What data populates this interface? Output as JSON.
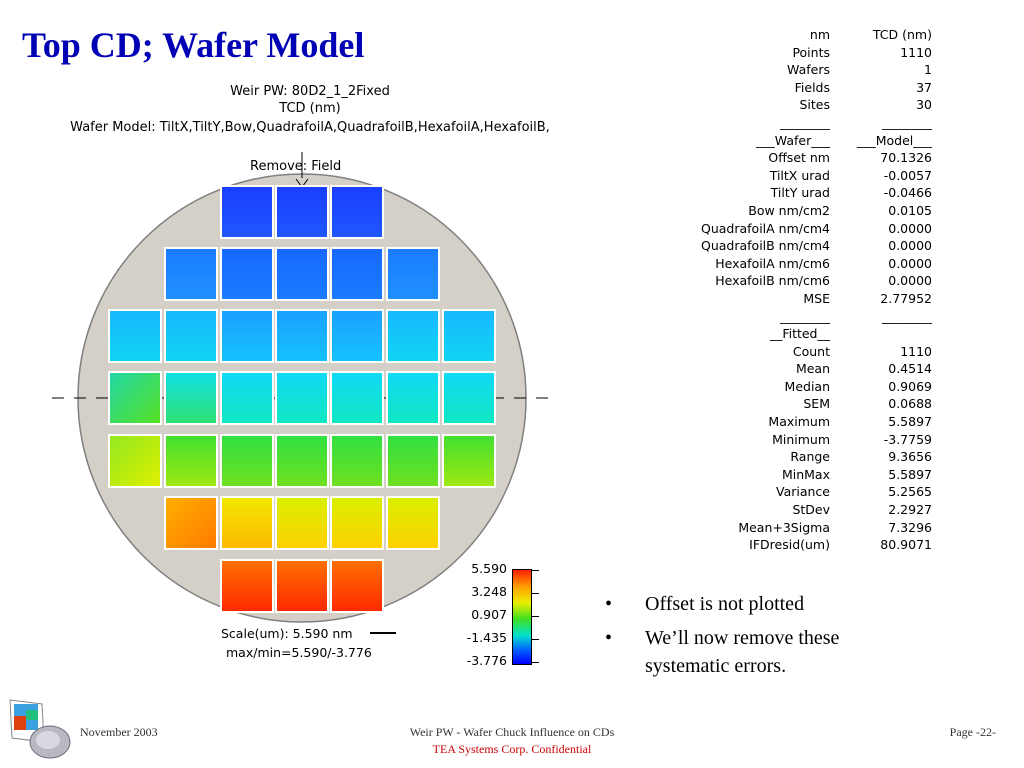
{
  "slide": {
    "title": "Top CD; Wafer Model"
  },
  "wafer_map": {
    "header_lines": [
      "Weir PW: 80D2_1_2Fixed",
      "TCD (nm)",
      "Wafer Model: TiltX,TiltY,Bow,QuadrafoilA,QuadrafoilB,HexafoilA,HexafoilB,"
    ],
    "remove_label": "Remove: Field",
    "scale_lines": [
      "Scale(um): 5.590 nm",
      "max/min=5.590/-3.776"
    ],
    "colorbar_labels": [
      "5.590",
      "3.248",
      "0.907",
      "-1.435",
      "-3.776"
    ],
    "colors": {
      "background": "#d4d0c8",
      "field_border": "#ffffff"
    }
  },
  "stats": {
    "rows": [
      {
        "label": "nm",
        "value": "TCD (nm)"
      },
      {
        "label": "Points",
        "value": "1110"
      },
      {
        "label": "Wafers",
        "value": "1"
      },
      {
        "label": "Fields",
        "value": "37"
      },
      {
        "label": "Sites",
        "value": "30"
      },
      {
        "label": "________",
        "value": "________"
      },
      {
        "label": "___Wafer___",
        "value": "___Model___"
      },
      {
        "label": "Offset nm",
        "value": "70.1326"
      },
      {
        "label": "TiltX urad",
        "value": "-0.0057"
      },
      {
        "label": "TiltY urad",
        "value": "-0.0466"
      },
      {
        "label": "Bow nm/cm2",
        "value": "0.0105"
      },
      {
        "label": "QuadrafoilA nm/cm4",
        "value": "0.0000"
      },
      {
        "label": "QuadrafoilB nm/cm4",
        "value": "0.0000"
      },
      {
        "label": "HexafoilA nm/cm6",
        "value": "0.0000"
      },
      {
        "label": "HexafoilB nm/cm6",
        "value": "0.0000"
      },
      {
        "label": "MSE",
        "value": "2.77952"
      },
      {
        "label": "________",
        "value": "________"
      },
      {
        "label": "__Fitted__",
        "value": ""
      },
      {
        "label": "Count",
        "value": "1110"
      },
      {
        "label": "Mean",
        "value": "0.4514"
      },
      {
        "label": "Median",
        "value": "0.9069"
      },
      {
        "label": "SEM",
        "value": "0.0688"
      },
      {
        "label": "Maximum",
        "value": "5.5897"
      },
      {
        "label": "Minimum",
        "value": "-3.7759"
      },
      {
        "label": "Range",
        "value": "9.3656"
      },
      {
        "label": "MinMax",
        "value": "5.5897"
      },
      {
        "label": "Variance",
        "value": "5.2565"
      },
      {
        "label": "StDev",
        "value": "2.2927"
      },
      {
        "label": "Mean+3Sigma",
        "value": "7.3296"
      },
      {
        "label": "IFDresid(um)",
        "value": "80.9071"
      }
    ]
  },
  "bullets": [
    {
      "marker": "•",
      "text": "Offset is not plotted"
    },
    {
      "marker": "•",
      "text": "We’ll now remove these systematic errors."
    }
  ],
  "footer": {
    "date": "November 2003",
    "center_title": "Weir PW - Wafer Chuck Influence on CDs",
    "confidential": "TEA Systems Corp. Confidential",
    "page": "Page -22-"
  }
}
